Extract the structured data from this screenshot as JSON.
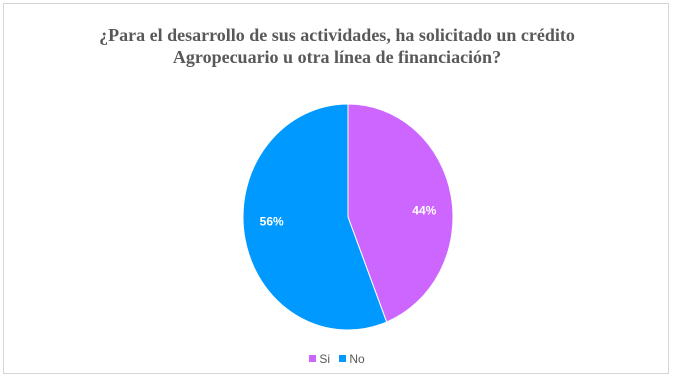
{
  "chart_data": {
    "type": "pie",
    "title": [
      "¿Para el desarrollo de sus actividades, ha solicitado un crédito",
      "Agropecuario u otra línea de financiación?"
    ],
    "series": [
      {
        "name": "Si",
        "value": 44,
        "label": "44%",
        "color": "#cc66ff"
      },
      {
        "name": "No",
        "value": 56,
        "label": "56%",
        "color": "#0099ff"
      }
    ],
    "legend_position": "bottom"
  }
}
